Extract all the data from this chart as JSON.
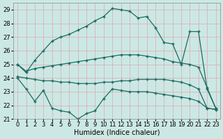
{
  "xlabel": "Humidex (Indice chaleur)",
  "xlim": [
    -0.5,
    23.5
  ],
  "ylim": [
    21,
    29.5
  ],
  "yticks": [
    21,
    22,
    23,
    24,
    25,
    26,
    27,
    28,
    29
  ],
  "xticks": [
    0,
    1,
    2,
    3,
    4,
    5,
    6,
    7,
    8,
    9,
    10,
    11,
    12,
    13,
    14,
    15,
    16,
    17,
    18,
    19,
    20,
    21,
    22,
    23
  ],
  "background_color": "#cce8e4",
  "grid_color": "#dba8b0",
  "line_color": "#1a6b62",
  "line_top_y": [
    25.0,
    24.4,
    25.3,
    26.0,
    26.7,
    27.0,
    27.2,
    27.5,
    27.8,
    28.2,
    28.5,
    29.1,
    29.0,
    28.9,
    28.4,
    28.5,
    27.7,
    26.6,
    26.5,
    25.0,
    27.4,
    27.4,
    23.2,
    21.8
  ],
  "line_mid1_y": [
    25.0,
    24.5,
    24.7,
    24.8,
    24.9,
    25.0,
    25.1,
    25.2,
    25.3,
    25.4,
    25.5,
    25.6,
    25.7,
    25.7,
    25.7,
    25.6,
    25.5,
    25.4,
    25.2,
    25.1,
    25.0,
    24.8,
    23.3,
    21.8
  ],
  "line_mid2_y": [
    24.1,
    24.0,
    23.9,
    23.8,
    23.8,
    23.7,
    23.7,
    23.6,
    23.6,
    23.6,
    23.7,
    23.7,
    23.8,
    23.8,
    23.9,
    23.9,
    23.9,
    23.9,
    23.8,
    23.7,
    23.5,
    23.2,
    21.8,
    21.7
  ],
  "line_bot_y": [
    24.0,
    23.2,
    22.3,
    23.1,
    21.8,
    21.6,
    21.5,
    21.0,
    21.4,
    21.6,
    22.5,
    23.2,
    23.1,
    23.0,
    23.0,
    23.0,
    22.9,
    22.8,
    22.7,
    22.6,
    22.5,
    22.3,
    21.8,
    21.7
  ],
  "marker": "+",
  "markersize": 3,
  "linewidth": 0.9,
  "tick_fontsize": 6,
  "xlabel_fontsize": 7
}
